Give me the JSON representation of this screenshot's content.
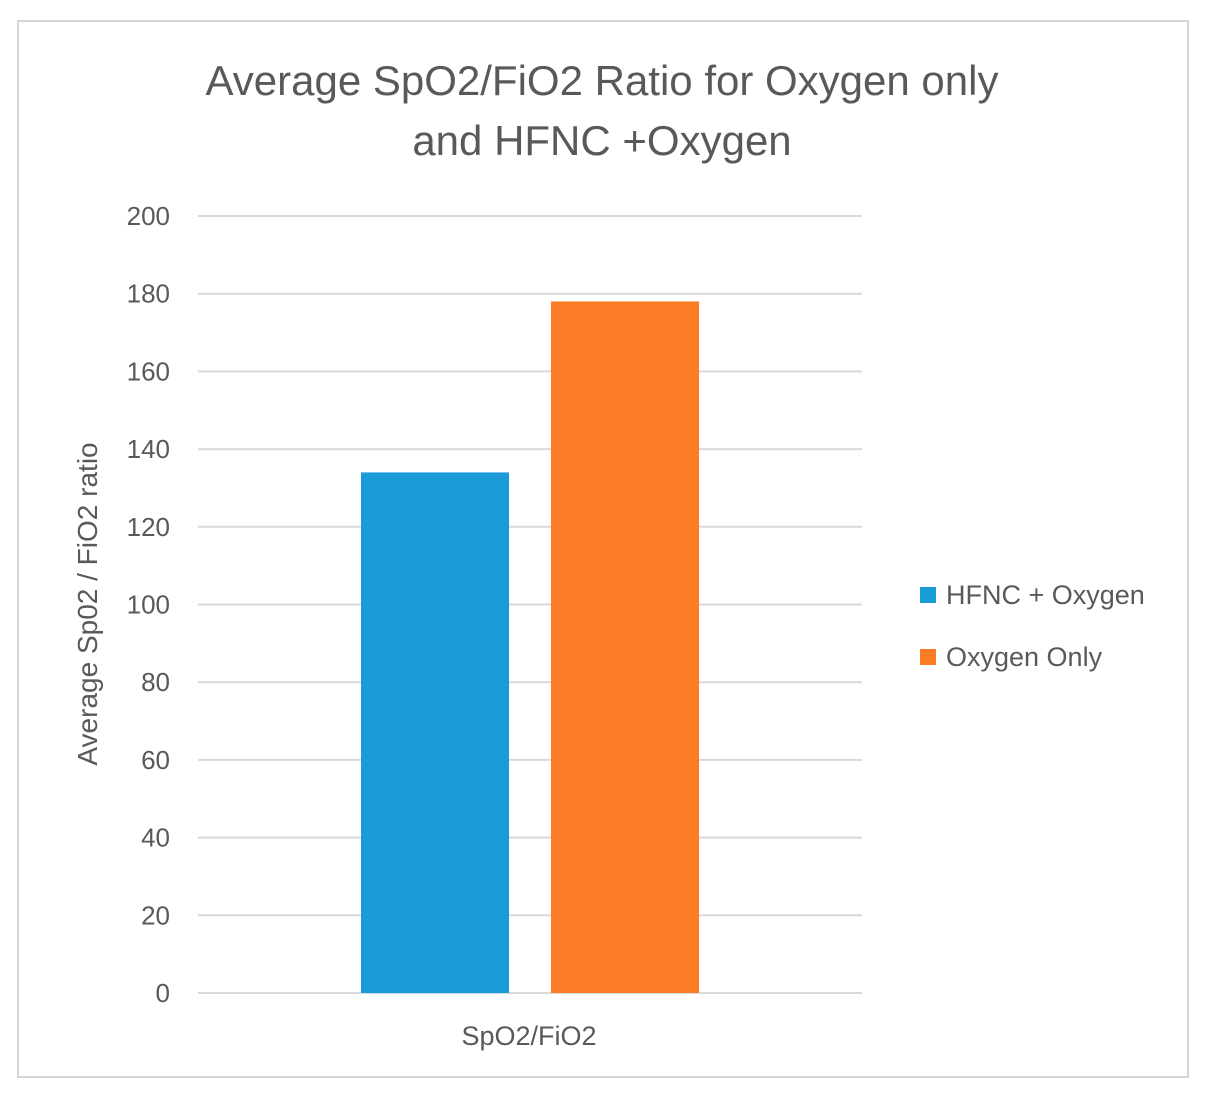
{
  "chart_data": {
    "type": "bar",
    "title_lines": [
      "Average SpO2/FiO2 Ratio for Oxygen only",
      "and HFNC  +Oxygen"
    ],
    "ylabel": "Average Sp02 / FiO2 ratio",
    "xlabel": "",
    "categories": [
      "SpO2/FiO2"
    ],
    "series": [
      {
        "name": "HFNC + Oxygen",
        "values": [
          134
        ],
        "color": "#1a9ad7"
      },
      {
        "name": "Oxygen Only",
        "values": [
          178
        ],
        "color": "#fb7c24"
      }
    ],
    "ylim": [
      0,
      200
    ],
    "yticks": [
      0,
      20,
      40,
      60,
      80,
      100,
      120,
      140,
      160,
      180,
      200
    ],
    "grid": true,
    "legend_position": "right"
  }
}
